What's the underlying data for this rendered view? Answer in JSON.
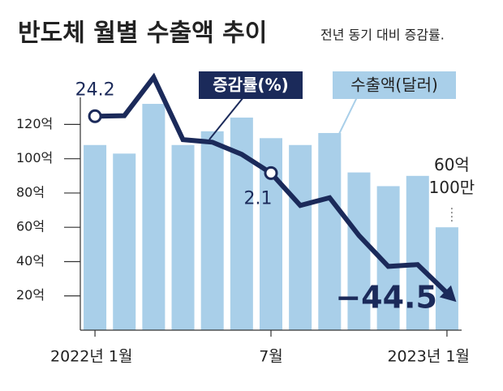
{
  "chart_data": {
    "type": "bar",
    "title": "반도체 월별 수출액 추이",
    "subtitle": "전년 동기 대비 증감률.",
    "categories": [
      "2022년 1월",
      null,
      null,
      null,
      null,
      null,
      "7월",
      null,
      null,
      null,
      null,
      null,
      "2023년 1월"
    ],
    "series": [
      {
        "name": "수출액(달러)",
        "type": "bar",
        "color": "#a9cfe9",
        "values": [
          108,
          103,
          132,
          108,
          116,
          124,
          112,
          108,
          115,
          92,
          84,
          90,
          60.01
        ],
        "value_labels": [
          null,
          null,
          null,
          null,
          null,
          null,
          null,
          null,
          null,
          null,
          null,
          null,
          "60억 100만"
        ]
      },
      {
        "name": "증감률(%)",
        "type": "line",
        "axis": "y2",
        "color": "#1b2a5a",
        "values": [
          24.2,
          24.4,
          39.3,
          15.1,
          14.1,
          9.4,
          2.1,
          -10.5,
          -7.5,
          -22.2,
          -34.2,
          -33.5,
          -44.5
        ],
        "value_labels": [
          "24.2",
          null,
          null,
          null,
          null,
          null,
          "2.1",
          null,
          null,
          null,
          null,
          null,
          "−44.5"
        ]
      }
    ],
    "ylim": [
      0,
      150
    ],
    "yticks": [
      {
        "value": 20,
        "label": "20억"
      },
      {
        "value": 40,
        "label": "40억"
      },
      {
        "value": 60,
        "label": "60억"
      },
      {
        "value": 80,
        "label": "80억"
      },
      {
        "value": 100,
        "label": "100억"
      },
      {
        "value": 120,
        "label": "120억"
      }
    ],
    "y2lim": [
      -59,
      41
    ],
    "grid": false
  }
}
